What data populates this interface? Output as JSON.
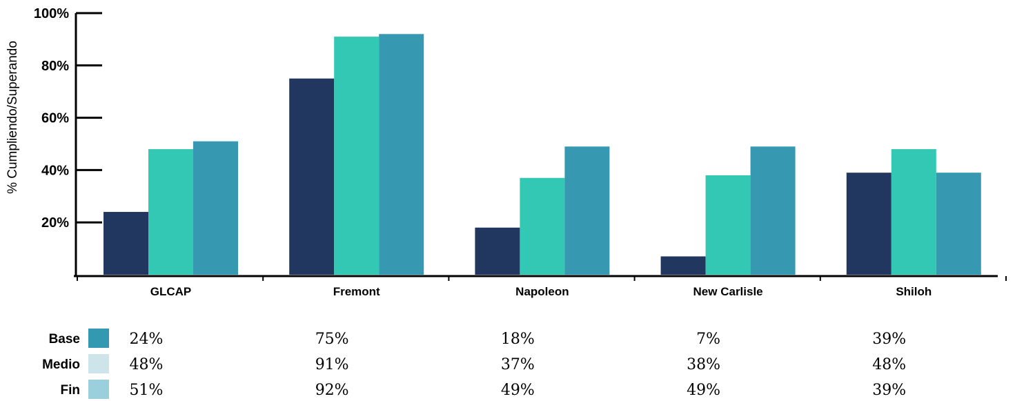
{
  "chart_data": {
    "type": "bar",
    "ylabel": "% Cumpliendo/Superando",
    "ylim": [
      0,
      100
    ],
    "yticks": [
      "20%",
      "40%",
      "60%",
      "80%",
      "100%"
    ],
    "ytick_values": [
      20,
      40,
      60,
      80,
      100
    ],
    "categories": [
      "GLCAP",
      "Fremont",
      "Napoleon",
      "New Carlisle",
      "Shiloh"
    ],
    "series": [
      {
        "name": "Base",
        "values": [
          24,
          75,
          18,
          7,
          39
        ],
        "color": "#22375f",
        "legend_color": "#3399b1"
      },
      {
        "name": "Medio",
        "values": [
          48,
          91,
          37,
          38,
          48
        ],
        "color": "#33c8b4",
        "legend_color": "#cde4ea"
      },
      {
        "name": "Fin",
        "values": [
          51,
          92,
          49,
          49,
          39
        ],
        "color": "#3699b1",
        "legend_color": "#9ccfdc"
      }
    ],
    "table_values": [
      [
        "24%",
        "75%",
        "18%",
        "7%",
        "39%"
      ],
      [
        "48%",
        "91%",
        "37%",
        "38%",
        "48%"
      ],
      [
        "51%",
        "92%",
        "49%",
        "49%",
        "39%"
      ]
    ],
    "grid": false,
    "legend": "bottom-left table"
  }
}
